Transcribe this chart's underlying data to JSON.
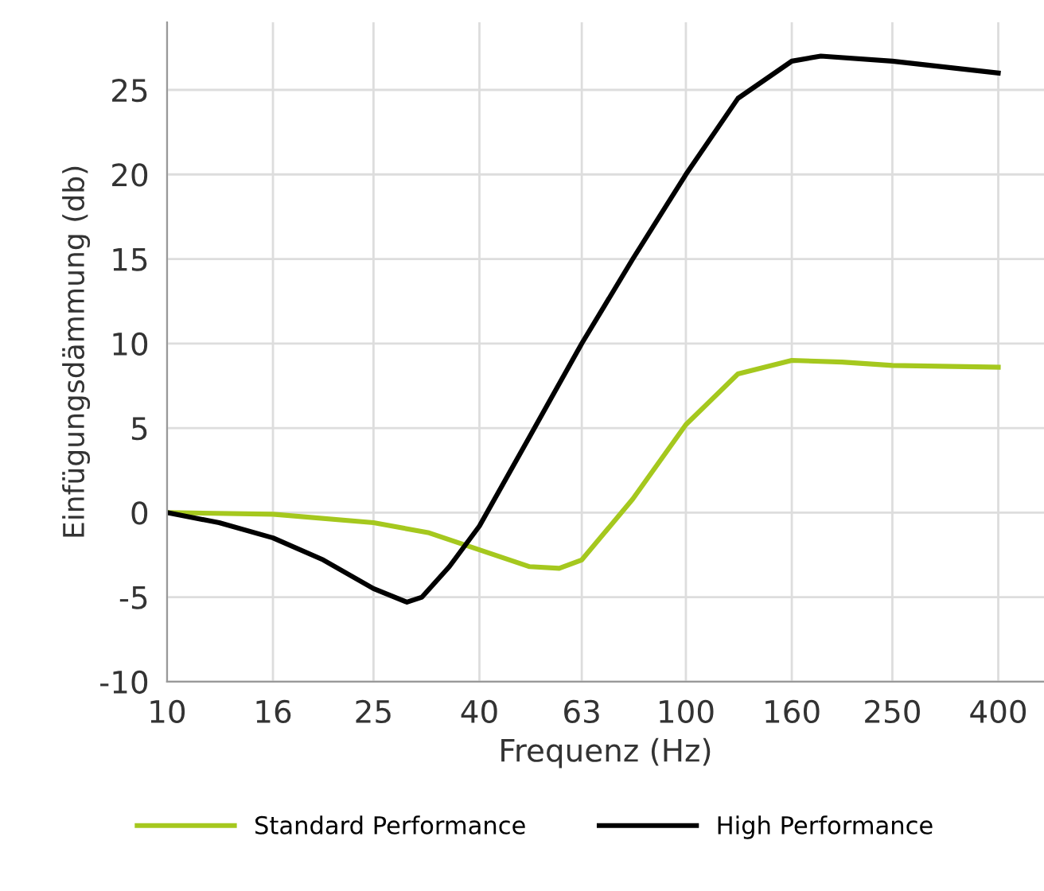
{
  "chart_data": {
    "type": "line",
    "xlabel": "Frequenz (Hz)",
    "ylabel": "Einfügungsdämmung (db)",
    "log": "x",
    "xlim": [
      10,
      490
    ],
    "ylim": [
      -10,
      29
    ],
    "xticks": [
      10,
      16,
      25,
      40,
      63,
      100,
      160,
      250,
      400
    ],
    "yticks": [
      -10,
      -5,
      0,
      5,
      10,
      15,
      20,
      25
    ],
    "grid": true,
    "legend": "bottom",
    "marker": "none",
    "line_style": "solid",
    "series": [
      {
        "name": "Standard Performance",
        "color": "#a5c81e",
        "x": [
          10,
          16,
          25,
          32,
          40,
          50,
          57,
          63,
          79,
          100,
          126,
          160,
          200,
          250,
          400
        ],
        "values": [
          0,
          -0.1,
          -0.6,
          -1.2,
          -2.2,
          -3.2,
          -3.3,
          -2.8,
          0.8,
          5.2,
          8.2,
          9,
          8.9,
          8.7,
          8.6
        ]
      },
      {
        "name": "High Performance",
        "color": "#000000",
        "x": [
          10,
          12.6,
          16,
          20,
          25,
          29,
          31,
          35,
          40,
          50,
          63,
          79,
          100,
          126,
          160,
          182,
          250,
          400
        ],
        "values": [
          0,
          -0.6,
          -1.5,
          -2.8,
          -4.5,
          -5.3,
          -5.0,
          -3.2,
          -0.8,
          4.5,
          10,
          15,
          20,
          24.5,
          26.7,
          27,
          26.7,
          26
        ]
      }
    ]
  }
}
